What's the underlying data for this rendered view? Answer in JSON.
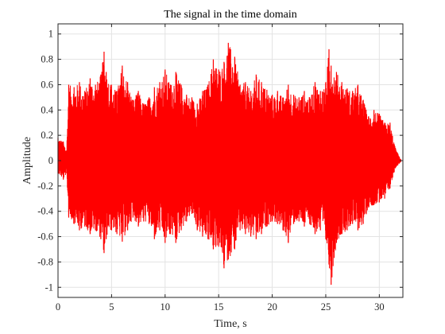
{
  "chart_data": {
    "type": "line",
    "title": "The signal in the time domain",
    "xlabel": "Time, s",
    "ylabel": "Amplitude",
    "xlim": [
      0,
      32.2
    ],
    "ylim": [
      -1.08,
      1.08
    ],
    "xticks": [
      0,
      5,
      10,
      15,
      20,
      25,
      30
    ],
    "xtick_labels": [
      "0",
      "5",
      "10",
      "15",
      "20",
      "25",
      "30"
    ],
    "yticks": [
      1,
      0.8,
      0.6,
      0.4,
      0.2,
      0,
      -0.2,
      -0.4,
      -0.6,
      -0.8,
      -1
    ],
    "ytick_labels": [
      "1",
      "0.8",
      "0.6",
      "0.4",
      "0.2",
      "0",
      "-0.2",
      "-0.4",
      "-0.6",
      "-0.8",
      "-1"
    ],
    "grid": true,
    "series_color": "#ff0000",
    "series": [
      {
        "x": [
          0,
          0.5,
          0.8,
          1.0,
          1.5,
          2.0,
          2.5,
          3.0,
          3.5,
          4.0,
          4.3,
          4.5,
          5.0,
          5.5,
          6.0,
          6.5,
          7.0,
          7.5,
          8.0,
          8.5,
          9.0,
          9.5,
          10.0,
          10.5,
          11.0,
          11.5,
          12.0,
          12.5,
          13.0,
          13.5,
          14.0,
          14.5,
          15.0,
          15.5,
          15.9,
          16.5,
          17.0,
          17.5,
          18.0,
          18.5,
          19.0,
          19.5,
          20.0,
          20.5,
          21.0,
          21.5,
          22.0,
          22.5,
          23.0,
          23.5,
          24.0,
          24.5,
          25.0,
          25.3,
          25.5,
          26.0,
          26.5,
          27.0,
          27.5,
          28.0,
          28.5,
          29.0,
          29.5,
          30.0,
          30.5,
          31.0,
          31.5,
          32.0
        ],
        "max": [
          0.18,
          0.15,
          0.08,
          0.6,
          0.58,
          0.62,
          0.55,
          0.65,
          0.6,
          0.68,
          0.86,
          0.7,
          0.6,
          0.55,
          0.75,
          0.62,
          0.48,
          0.55,
          0.45,
          0.5,
          0.58,
          0.62,
          0.72,
          0.6,
          0.7,
          0.6,
          0.52,
          0.5,
          0.45,
          0.55,
          0.6,
          0.8,
          0.72,
          0.78,
          0.93,
          0.82,
          0.6,
          0.62,
          0.55,
          0.68,
          0.62,
          0.56,
          0.52,
          0.55,
          0.5,
          0.6,
          0.52,
          0.5,
          0.55,
          0.5,
          0.62,
          0.55,
          0.62,
          0.88,
          0.75,
          0.7,
          0.62,
          0.57,
          0.55,
          0.6,
          0.48,
          0.35,
          0.4,
          0.37,
          0.3,
          0.3,
          0.1,
          0.01
        ],
        "min": [
          -0.1,
          -0.15,
          -0.1,
          -0.45,
          -0.5,
          -0.55,
          -0.52,
          -0.58,
          -0.55,
          -0.62,
          -0.73,
          -0.62,
          -0.55,
          -0.58,
          -0.64,
          -0.55,
          -0.45,
          -0.52,
          -0.48,
          -0.5,
          -0.62,
          -0.55,
          -0.65,
          -0.58,
          -0.65,
          -0.55,
          -0.48,
          -0.42,
          -0.55,
          -0.6,
          -0.62,
          -0.7,
          -0.68,
          -0.85,
          -0.78,
          -0.7,
          -0.55,
          -0.58,
          -0.6,
          -0.62,
          -0.58,
          -0.52,
          -0.48,
          -0.5,
          -0.55,
          -0.65,
          -0.5,
          -0.48,
          -0.52,
          -0.5,
          -0.58,
          -0.55,
          -0.62,
          -0.82,
          -0.98,
          -0.65,
          -0.58,
          -0.55,
          -0.5,
          -0.55,
          -0.5,
          -0.37,
          -0.35,
          -0.33,
          -0.3,
          -0.22,
          -0.06,
          -0.01
        ]
      }
    ]
  }
}
